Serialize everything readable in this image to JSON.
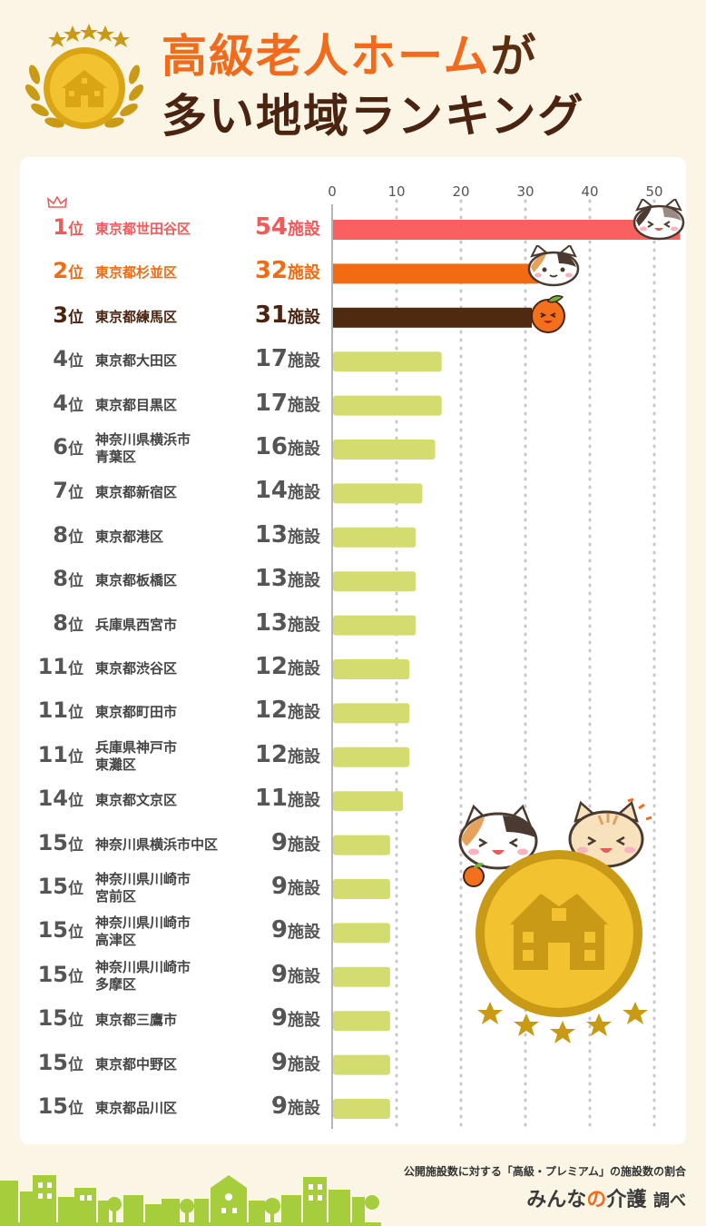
{
  "title": {
    "line1": "高級老人ホーム",
    "line1_particle": "が",
    "line2": "多い地域ランキング"
  },
  "chart_data": {
    "type": "bar",
    "orientation": "horizontal",
    "xlim": [
      0,
      54
    ],
    "ticks": [
      0,
      10,
      20,
      30,
      40,
      50
    ],
    "grid": true,
    "unit": "施設",
    "rank_suffix": "位",
    "colors": {
      "top1": "#f96161",
      "top2": "#f26b12",
      "top3": "#4f2a10",
      "rest": "#d3dc6e"
    },
    "rows": [
      {
        "rank": "1",
        "name": [
          "東京都世田谷区"
        ],
        "value": 54
      },
      {
        "rank": "2",
        "name": [
          "東京都杉並区"
        ],
        "value": 32
      },
      {
        "rank": "3",
        "name": [
          "東京都練馬区"
        ],
        "value": 31
      },
      {
        "rank": "4",
        "name": [
          "東京都大田区"
        ],
        "value": 17
      },
      {
        "rank": "4",
        "name": [
          "東京都目黒区"
        ],
        "value": 17
      },
      {
        "rank": "6",
        "name": [
          "神奈川県横浜市",
          "青葉区"
        ],
        "value": 16
      },
      {
        "rank": "7",
        "name": [
          "東京都新宿区"
        ],
        "value": 14
      },
      {
        "rank": "8",
        "name": [
          "東京都港区"
        ],
        "value": 13
      },
      {
        "rank": "8",
        "name": [
          "東京都板橋区"
        ],
        "value": 13
      },
      {
        "rank": "8",
        "name": [
          "兵庫県西宮市"
        ],
        "value": 13
      },
      {
        "rank": "11",
        "name": [
          "東京都渋谷区"
        ],
        "value": 12
      },
      {
        "rank": "11",
        "name": [
          "東京都町田市"
        ],
        "value": 12
      },
      {
        "rank": "11",
        "name": [
          "兵庫県神戸市",
          "東灘区"
        ],
        "value": 12
      },
      {
        "rank": "14",
        "name": [
          "東京都文京区"
        ],
        "value": 11
      },
      {
        "rank": "15",
        "name": [
          "神奈川県横浜市中区"
        ],
        "value": 9
      },
      {
        "rank": "15",
        "name": [
          "神奈川県川崎市",
          "宮前区"
        ],
        "value": 9
      },
      {
        "rank": "15",
        "name": [
          "神奈川県川崎市",
          "高津区"
        ],
        "value": 9
      },
      {
        "rank": "15",
        "name": [
          "神奈川県川崎市",
          "多摩区"
        ],
        "value": 9
      },
      {
        "rank": "15",
        "name": [
          "東京都三鷹市"
        ],
        "value": 9
      },
      {
        "rank": "15",
        "name": [
          "東京都中野区"
        ],
        "value": 9
      },
      {
        "rank": "15",
        "name": [
          "東京都品川区"
        ],
        "value": 9
      }
    ]
  },
  "footer": {
    "note": "公開施設数に対する「高級・プレミアム」の施設数の割合",
    "brand_a": "みんな",
    "brand_no": "の",
    "brand_b": "介護",
    "brand_sub": "調べ"
  },
  "icons": {
    "medal": "school-building-medal-icon",
    "crown": "crown-icon",
    "cat": "cat-face-icon",
    "orange": "orange-character-icon"
  }
}
